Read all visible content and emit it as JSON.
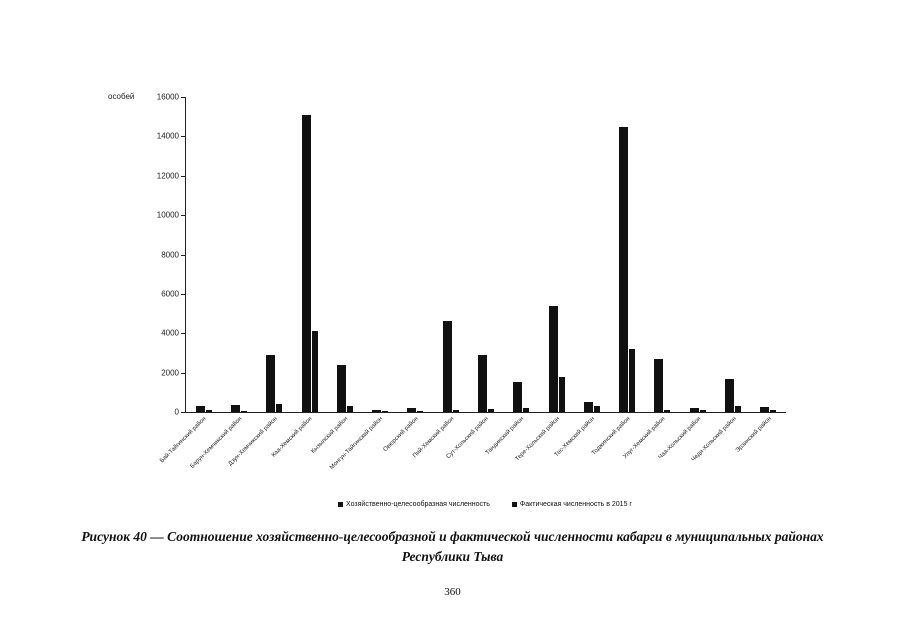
{
  "page": {
    "number": "360"
  },
  "caption": "Рисунок 40 — Соотношение хозяйственно-целесообразной и фактической численности кабарги в муниципальных районах\nРеспублики Тыва",
  "chart_data": {
    "type": "bar",
    "title": "",
    "xlabel": "",
    "ylabel": "особей",
    "ylim": [
      0,
      16000
    ],
    "yticks": [
      0,
      2000,
      4000,
      6000,
      8000,
      10000,
      12000,
      14000,
      16000
    ],
    "grid": false,
    "legend_position": "bottom",
    "bar_color": "#111111",
    "categories": [
      "Бай-Тайгинский район",
      "Барун-Хемчикский район",
      "Дзун-Хемчикский район",
      "Каа-Хемский район",
      "Кызылский район",
      "Монгун-Тайгинский район",
      "Овюрский район",
      "Пий-Хемский район",
      "Сут-Хольский район",
      "Тандинский район",
      "Тере-Хольский район",
      "Тес-Хемский район",
      "Тоджинский район",
      "Улуг-Хемский район",
      "Чаа-Хольский район",
      "Чеди-Хольский район",
      "Эрзинский район"
    ],
    "series": [
      {
        "name": "Хозяйственно-целесообразная численность",
        "color": "#111111",
        "values": [
          300,
          350,
          2900,
          15100,
          2400,
          100,
          200,
          4600,
          2900,
          1500,
          5400,
          500,
          14500,
          2700,
          200,
          1700,
          250
        ]
      },
      {
        "name": "Фактическая численность в 2015 г",
        "color": "#111111",
        "values": [
          100,
          50,
          400,
          4100,
          300,
          50,
          50,
          100,
          150,
          200,
          1800,
          300,
          3200,
          100,
          100,
          300,
          100
        ]
      }
    ]
  }
}
